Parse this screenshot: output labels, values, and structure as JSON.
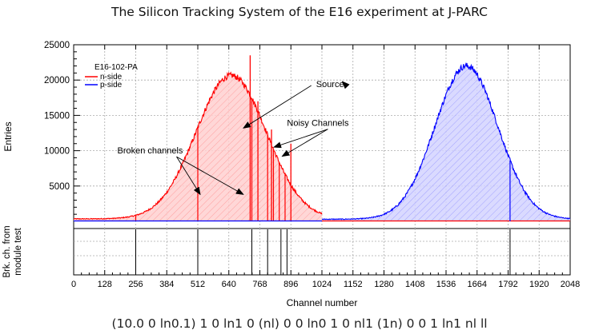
{
  "page": {
    "title": "The Silicon Tracking System of the E16 experiment at J-PARC",
    "bottom_text": "(10.0 0 ln0.1) 1 0 ln1 0 (nl) 0 0 ln0 1 0 nl1 (1n) 0 0 1 ln1 nl ll"
  },
  "chart_data": {
    "type": "area",
    "xlabel": "Channel number",
    "ylabel": "Entries",
    "lower_panel_ylabel": [
      "Brk. ch. from",
      "module test"
    ],
    "xlim": [
      0,
      2048
    ],
    "ylim": [
      0,
      25000
    ],
    "x_ticks": [
      0,
      128,
      256,
      384,
      512,
      640,
      768,
      896,
      1024,
      1152,
      1280,
      1408,
      1536,
      1664,
      1792,
      1920,
      2048
    ],
    "y_ticks": [
      5000,
      10000,
      15000,
      20000,
      25000
    ],
    "grid": true,
    "legend": {
      "position": "top-left",
      "header": "E16-102-PA",
      "entries": [
        {
          "name": "n-side",
          "color": "#ff0000"
        },
        {
          "name": "p-side",
          "color": "#0000ff"
        }
      ]
    },
    "series": [
      {
        "name": "n-side",
        "color": "#ff0000",
        "fill": "#ffd0d0",
        "x_range": [
          0,
          1024
        ],
        "peak_center": 650,
        "peak_sigma": 145,
        "peak_height": 20300,
        "baseline": 350,
        "dead_channels": [
          256,
          512,
          735,
          800,
          824,
          848,
          872
        ],
        "spike_channels": [
          {
            "x": 728,
            "y": 23500
          },
          {
            "x": 760,
            "y": 17000
          },
          {
            "x": 816,
            "y": 13000
          },
          {
            "x": 896,
            "y": 11000
          }
        ]
      },
      {
        "name": "p-side",
        "color": "#0000ff",
        "fill": "#d4d4ff",
        "x_range": [
          1024,
          2048
        ],
        "peak_center": 1620,
        "peak_sigma": 130,
        "peak_height": 21700,
        "baseline": 300,
        "dead_channels": [
          1800
        ]
      }
    ],
    "lower_panel_broken_channels": [
      256,
      512,
      735,
      800,
      855,
      880,
      1800
    ],
    "annotations": [
      {
        "text": "Source",
        "label_at": [
          1000,
          19000
        ],
        "arrows_to": [
          [
            700,
            13200
          ],
          [
            1108,
            19800
          ]
        ]
      },
      {
        "text": "Noisy Channels",
        "label_at": [
          880,
          13500
        ],
        "arrows_to": [
          [
            826,
            10500
          ],
          [
            860,
            9200
          ]
        ]
      },
      {
        "text": "Broken channels",
        "label_at": [
          180,
          9600
        ],
        "arrows_to": [
          [
            522,
            3800
          ],
          [
            700,
            3800
          ]
        ]
      }
    ]
  }
}
